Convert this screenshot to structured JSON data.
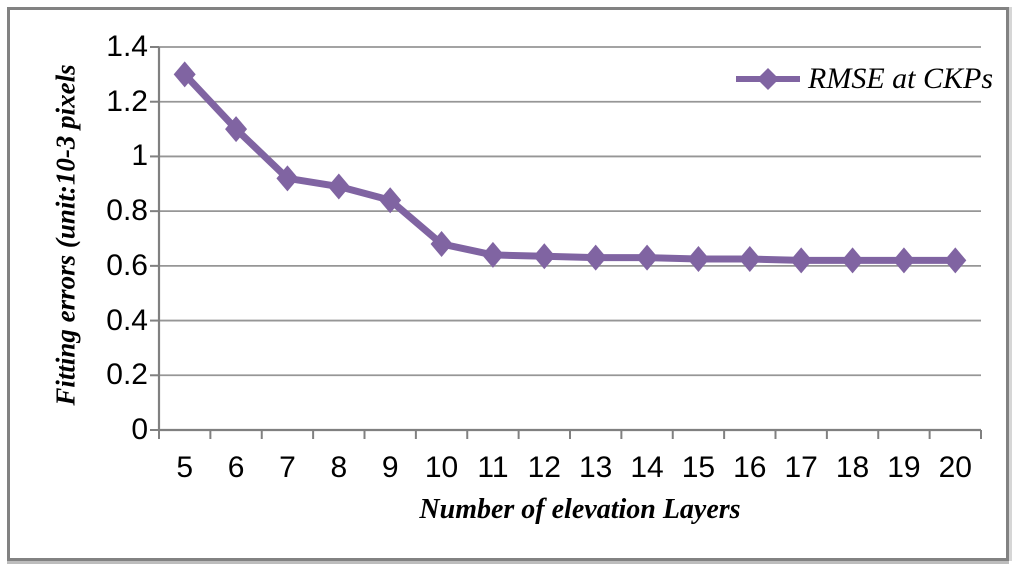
{
  "chart_data": {
    "type": "line",
    "x_categories": [
      "5",
      "6",
      "7",
      "8",
      "9",
      "10",
      "11",
      "12",
      "13",
      "14",
      "15",
      "16",
      "17",
      "18",
      "19",
      "20"
    ],
    "series": [
      {
        "name": "RMSE at CKPs",
        "marker": "diamond",
        "color": "#8064A2",
        "values": [
          1.3,
          1.1,
          0.92,
          0.89,
          0.84,
          0.68,
          0.64,
          0.635,
          0.63,
          0.63,
          0.625,
          0.625,
          0.62,
          0.62,
          0.62,
          0.62
        ]
      }
    ],
    "xlabel": "Number of elevation Layers",
    "ylabel": "Fitting errors (unit:10-3 pixels",
    "ylim": [
      0,
      1.4
    ],
    "y_ticks": [
      0,
      0.2,
      0.4,
      0.6,
      0.8,
      1,
      1.2,
      1.4
    ],
    "y_tick_labels": [
      "0",
      "0.2",
      "0.4",
      "0.6",
      "0.8",
      "1",
      "1.2",
      "1.4"
    ],
    "grid": "horizontal-gridlines",
    "legend_position": "top-right-inside",
    "colors": {
      "gridline": "#969696",
      "axis": "#808080",
      "frame_border": "#828282",
      "text": "#000000",
      "background": "#ffffff"
    }
  }
}
